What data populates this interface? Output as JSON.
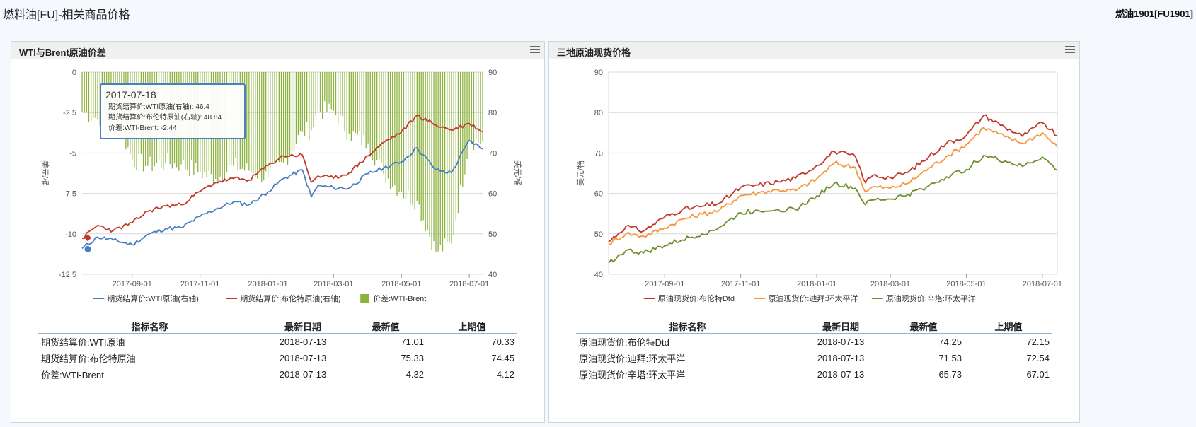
{
  "page_title": "燃料油[FU]-相关商品价格",
  "contract": "燃油1901[FU1901]",
  "colors": {
    "wti": "#4a7ebf",
    "brent": "#c0392b",
    "spread": "#8db33f",
    "dubai": "#f5963b",
    "tapis": "#6f8f2f"
  },
  "panels": [
    {
      "title": "WTI与Brent原油价差",
      "icon": "menu-icon",
      "tooltip": {
        "date": "2017-07-18",
        "lines": [
          "期货结算价:WTI原油(右轴): 46.4",
          "期货结算价:布伦特原油(右轴): 48.84",
          "价差:WTI-Brent: -2.44"
        ]
      },
      "table": {
        "headers": [
          "指标名称",
          "最新日期",
          "最新值",
          "上期值"
        ],
        "rows": [
          [
            "期货结算价:WTI原油",
            "2018-07-13",
            "71.01",
            "70.33"
          ],
          [
            "期货结算价:布伦特原油",
            "2018-07-13",
            "75.33",
            "74.45"
          ],
          [
            "价差:WTI-Brent",
            "2018-07-13",
            "-4.32",
            "-4.12"
          ]
        ]
      }
    },
    {
      "title": "三地原油现货价格",
      "icon": "menu-icon",
      "table": {
        "headers": [
          "指标名称",
          "最新日期",
          "最新值",
          "上期值"
        ],
        "rows": [
          [
            "原油现货价:布伦特Dtd",
            "2018-07-13",
            "74.25",
            "72.15"
          ],
          [
            "原油现货价:迪拜:环太平洋",
            "2018-07-13",
            "71.53",
            "72.54"
          ],
          [
            "原油现货价:辛塔:环太平洋",
            "2018-07-13",
            "65.73",
            "67.01"
          ]
        ]
      }
    }
  ],
  "chart_data": [
    {
      "type": "bar",
      "xlim": [
        "2017-07-18",
        "2018-07-13"
      ],
      "x_ticks": [
        "2017-09-01",
        "2017-11-01",
        "2018-01-01",
        "2018-03-01",
        "2018-05-01",
        "2018-07-01"
      ],
      "y_left": {
        "label": "美元/桶",
        "lim": [
          -12.5,
          0
        ],
        "ticks": [
          "0",
          "-2.5",
          "-5",
          "-7.5",
          "-10",
          "-12.5"
        ]
      },
      "y_right": {
        "label": "美元/桶",
        "lim": [
          40,
          90
        ],
        "ticks": [
          "90",
          "80",
          "70",
          "60",
          "50",
          "40"
        ]
      },
      "legend": [
        "期货结算价:WTI原油(右轴)",
        "期货结算价:布伦特原油(右轴)",
        "价差:WTI-Brent"
      ],
      "legend_position": "bottom",
      "series": [
        {
          "name": "期货结算价:WTI原油(右轴)",
          "axis": "right",
          "kind": "line",
          "x": [
            "2017-07-18",
            "2017-08-01",
            "2017-08-15",
            "2017-09-01",
            "2017-09-15",
            "2017-10-01",
            "2017-10-15",
            "2017-11-01",
            "2017-11-15",
            "2017-12-01",
            "2017-12-15",
            "2018-01-01",
            "2018-01-15",
            "2018-02-01",
            "2018-02-09",
            "2018-02-15",
            "2018-03-01",
            "2018-03-15",
            "2018-04-01",
            "2018-04-15",
            "2018-05-01",
            "2018-05-15",
            "2018-06-01",
            "2018-06-15",
            "2018-07-01",
            "2018-07-13"
          ],
          "values": [
            46.4,
            49.2,
            48.5,
            47.3,
            49.8,
            51.3,
            51.5,
            54.3,
            56.1,
            57.9,
            57.2,
            60.4,
            63.7,
            65.8,
            59.2,
            61.9,
            61.4,
            61.3,
            64.9,
            66.3,
            67.8,
            71.3,
            65.8,
            65.1,
            73.1,
            71.01
          ]
        },
        {
          "name": "期货结算价:布伦特原油(右轴)",
          "axis": "right",
          "kind": "line",
          "x": [
            "2017-07-18",
            "2017-08-01",
            "2017-08-15",
            "2017-09-01",
            "2017-09-15",
            "2017-10-01",
            "2017-10-15",
            "2017-11-01",
            "2017-11-15",
            "2017-12-01",
            "2017-12-15",
            "2018-01-01",
            "2018-01-15",
            "2018-02-01",
            "2018-02-09",
            "2018-02-15",
            "2018-03-01",
            "2018-03-15",
            "2018-04-01",
            "2018-04-15",
            "2018-05-01",
            "2018-05-15",
            "2018-06-01",
            "2018-06-15",
            "2018-07-01",
            "2018-07-13"
          ],
          "values": [
            48.84,
            52.1,
            50.8,
            52.7,
            55.6,
            56.9,
            57.2,
            60.5,
            62.7,
            63.7,
            63.3,
            66.9,
            69.3,
            69.5,
            62.8,
            64.3,
            63.8,
            65.1,
            69.3,
            72.6,
            75.2,
            79.3,
            76.9,
            75.7,
            77.3,
            75.33
          ]
        },
        {
          "name": "价差:WTI-Brent",
          "axis": "left",
          "kind": "bar",
          "x": [
            "2017-07-18",
            "2017-08-01",
            "2017-08-15",
            "2017-09-01",
            "2017-09-15",
            "2017-10-01",
            "2017-10-15",
            "2017-11-01",
            "2017-11-15",
            "2017-12-01",
            "2017-12-15",
            "2018-01-01",
            "2018-01-15",
            "2018-02-01",
            "2018-02-09",
            "2018-02-15",
            "2018-03-01",
            "2018-03-15",
            "2018-04-01",
            "2018-04-15",
            "2018-05-01",
            "2018-05-15",
            "2018-06-01",
            "2018-06-15",
            "2018-07-01",
            "2018-07-13"
          ],
          "values": [
            -2.44,
            -2.9,
            -2.3,
            -5.4,
            -5.8,
            -5.6,
            -5.7,
            -6.2,
            -6.6,
            -5.8,
            -6.1,
            -6.5,
            -5.6,
            -3.7,
            -3.6,
            -2.4,
            -2.4,
            -3.8,
            -4.4,
            -6.3,
            -7.4,
            -8.0,
            -11.1,
            -10.6,
            -4.2,
            -4.32
          ]
        }
      ]
    },
    {
      "type": "line",
      "xlim": [
        "2017-07-18",
        "2018-07-13"
      ],
      "x_ticks": [
        "2017-09-01",
        "2017-11-01",
        "2018-01-01",
        "2018-03-01",
        "2018-05-01",
        "2018-07-01"
      ],
      "y": {
        "label": "美元/桶",
        "lim": [
          40,
          90
        ],
        "ticks": [
          "90",
          "80",
          "70",
          "60",
          "50",
          "40"
        ]
      },
      "legend": [
        "原油现货价:布伦特Dtd",
        "原油现货价:迪拜:环太平洋",
        "原油现货价:辛塔:环太平洋"
      ],
      "legend_position": "bottom",
      "series": [
        {
          "name": "原油现货价:布伦特Dtd",
          "x": [
            "2017-07-18",
            "2017-08-01",
            "2017-08-15",
            "2017-09-01",
            "2017-09-15",
            "2017-10-01",
            "2017-10-15",
            "2017-11-01",
            "2017-11-15",
            "2017-12-01",
            "2017-12-15",
            "2018-01-01",
            "2018-01-15",
            "2018-02-01",
            "2018-02-09",
            "2018-02-15",
            "2018-03-01",
            "2018-03-15",
            "2018-04-01",
            "2018-04-15",
            "2018-05-01",
            "2018-05-15",
            "2018-06-01",
            "2018-06-15",
            "2018-07-01",
            "2018-07-13"
          ],
          "values": [
            48.0,
            51.9,
            50.7,
            54.2,
            56.0,
            56.8,
            57.6,
            61.5,
            62.1,
            62.9,
            63.8,
            66.9,
            70.4,
            69.1,
            62.7,
            64.5,
            63.9,
            65.2,
            69.1,
            72.4,
            74.3,
            79.3,
            76.4,
            74.2,
            77.5,
            74.25
          ]
        },
        {
          "name": "原油现货价:迪拜:环太平洋",
          "x": [
            "2017-07-18",
            "2017-08-01",
            "2017-08-15",
            "2017-09-01",
            "2017-09-15",
            "2017-10-01",
            "2017-10-15",
            "2017-11-01",
            "2017-11-15",
            "2017-12-01",
            "2017-12-15",
            "2018-01-01",
            "2018-01-15",
            "2018-02-01",
            "2018-02-09",
            "2018-02-15",
            "2018-03-01",
            "2018-03-15",
            "2018-04-01",
            "2018-04-15",
            "2018-05-01",
            "2018-05-15",
            "2018-06-01",
            "2018-06-15",
            "2018-07-01",
            "2018-07-13"
          ],
          "values": [
            47.5,
            50.1,
            49.4,
            51.5,
            53.6,
            54.9,
            55.8,
            59.5,
            60.2,
            60.9,
            60.7,
            63.6,
            67.5,
            66.4,
            60.4,
            61.6,
            61.3,
            62.5,
            66.3,
            69.1,
            72.1,
            76.3,
            74.0,
            72.4,
            75.0,
            71.53
          ]
        },
        {
          "name": "原油现货价:辛塔:环太平洋",
          "x": [
            "2017-07-18",
            "2017-08-01",
            "2017-08-15",
            "2017-09-01",
            "2017-09-15",
            "2017-10-01",
            "2017-10-15",
            "2017-11-01",
            "2017-11-15",
            "2017-12-01",
            "2017-12-15",
            "2018-01-01",
            "2018-01-15",
            "2018-02-01",
            "2018-02-09",
            "2018-02-15",
            "2018-03-01",
            "2018-03-15",
            "2018-04-01",
            "2018-04-15",
            "2018-05-01",
            "2018-05-15",
            "2018-06-01",
            "2018-06-15",
            "2018-07-01",
            "2018-07-13"
          ],
          "values": [
            42.8,
            45.9,
            45.3,
            47.1,
            48.5,
            50.0,
            51.6,
            55.2,
            55.8,
            56.1,
            56.0,
            59.4,
            62.5,
            61.3,
            57.2,
            58.4,
            58.6,
            59.7,
            61.9,
            64.1,
            65.9,
            69.4,
            68.0,
            66.7,
            69.0,
            65.73
          ]
        }
      ]
    }
  ]
}
